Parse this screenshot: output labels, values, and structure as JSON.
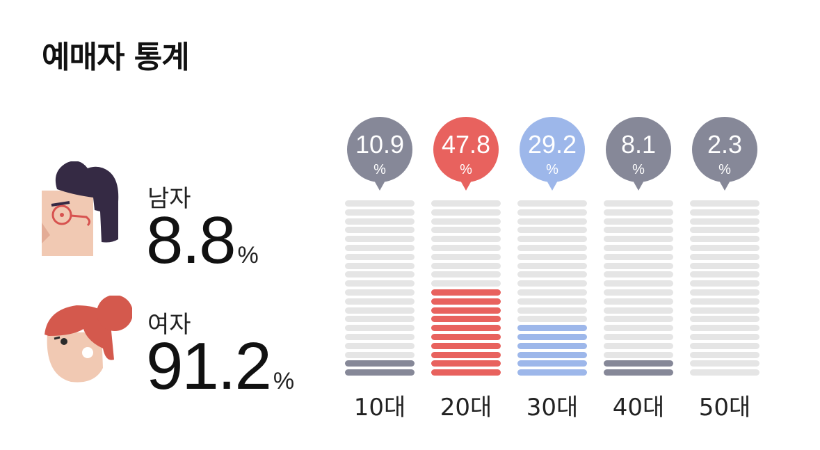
{
  "title": "예매자 통계",
  "gender": {
    "male": {
      "label": "남자",
      "value": "8.8",
      "unit": "%"
    },
    "female": {
      "label": "여자",
      "value": "91.2",
      "unit": "%"
    }
  },
  "chart_data": {
    "type": "bar",
    "title": "",
    "xlabel": "",
    "ylabel": "",
    "ylim": [
      0,
      100
    ],
    "grid": false,
    "categories": [
      "10대",
      "20대",
      "30대",
      "40대",
      "50대"
    ],
    "values": [
      10.9,
      47.8,
      29.2,
      8.1,
      2.3
    ],
    "value_labels": [
      "10.9",
      "47.8",
      "29.2",
      "8.1",
      "2.3"
    ],
    "unit": "%",
    "filled_segments": [
      2,
      10,
      6,
      2,
      0
    ],
    "total_segments": 20,
    "colors": [
      "#868898",
      "#e8625e",
      "#9db7ea",
      "#868898",
      "#868898"
    ],
    "empty_color": "#e5e5e5"
  }
}
